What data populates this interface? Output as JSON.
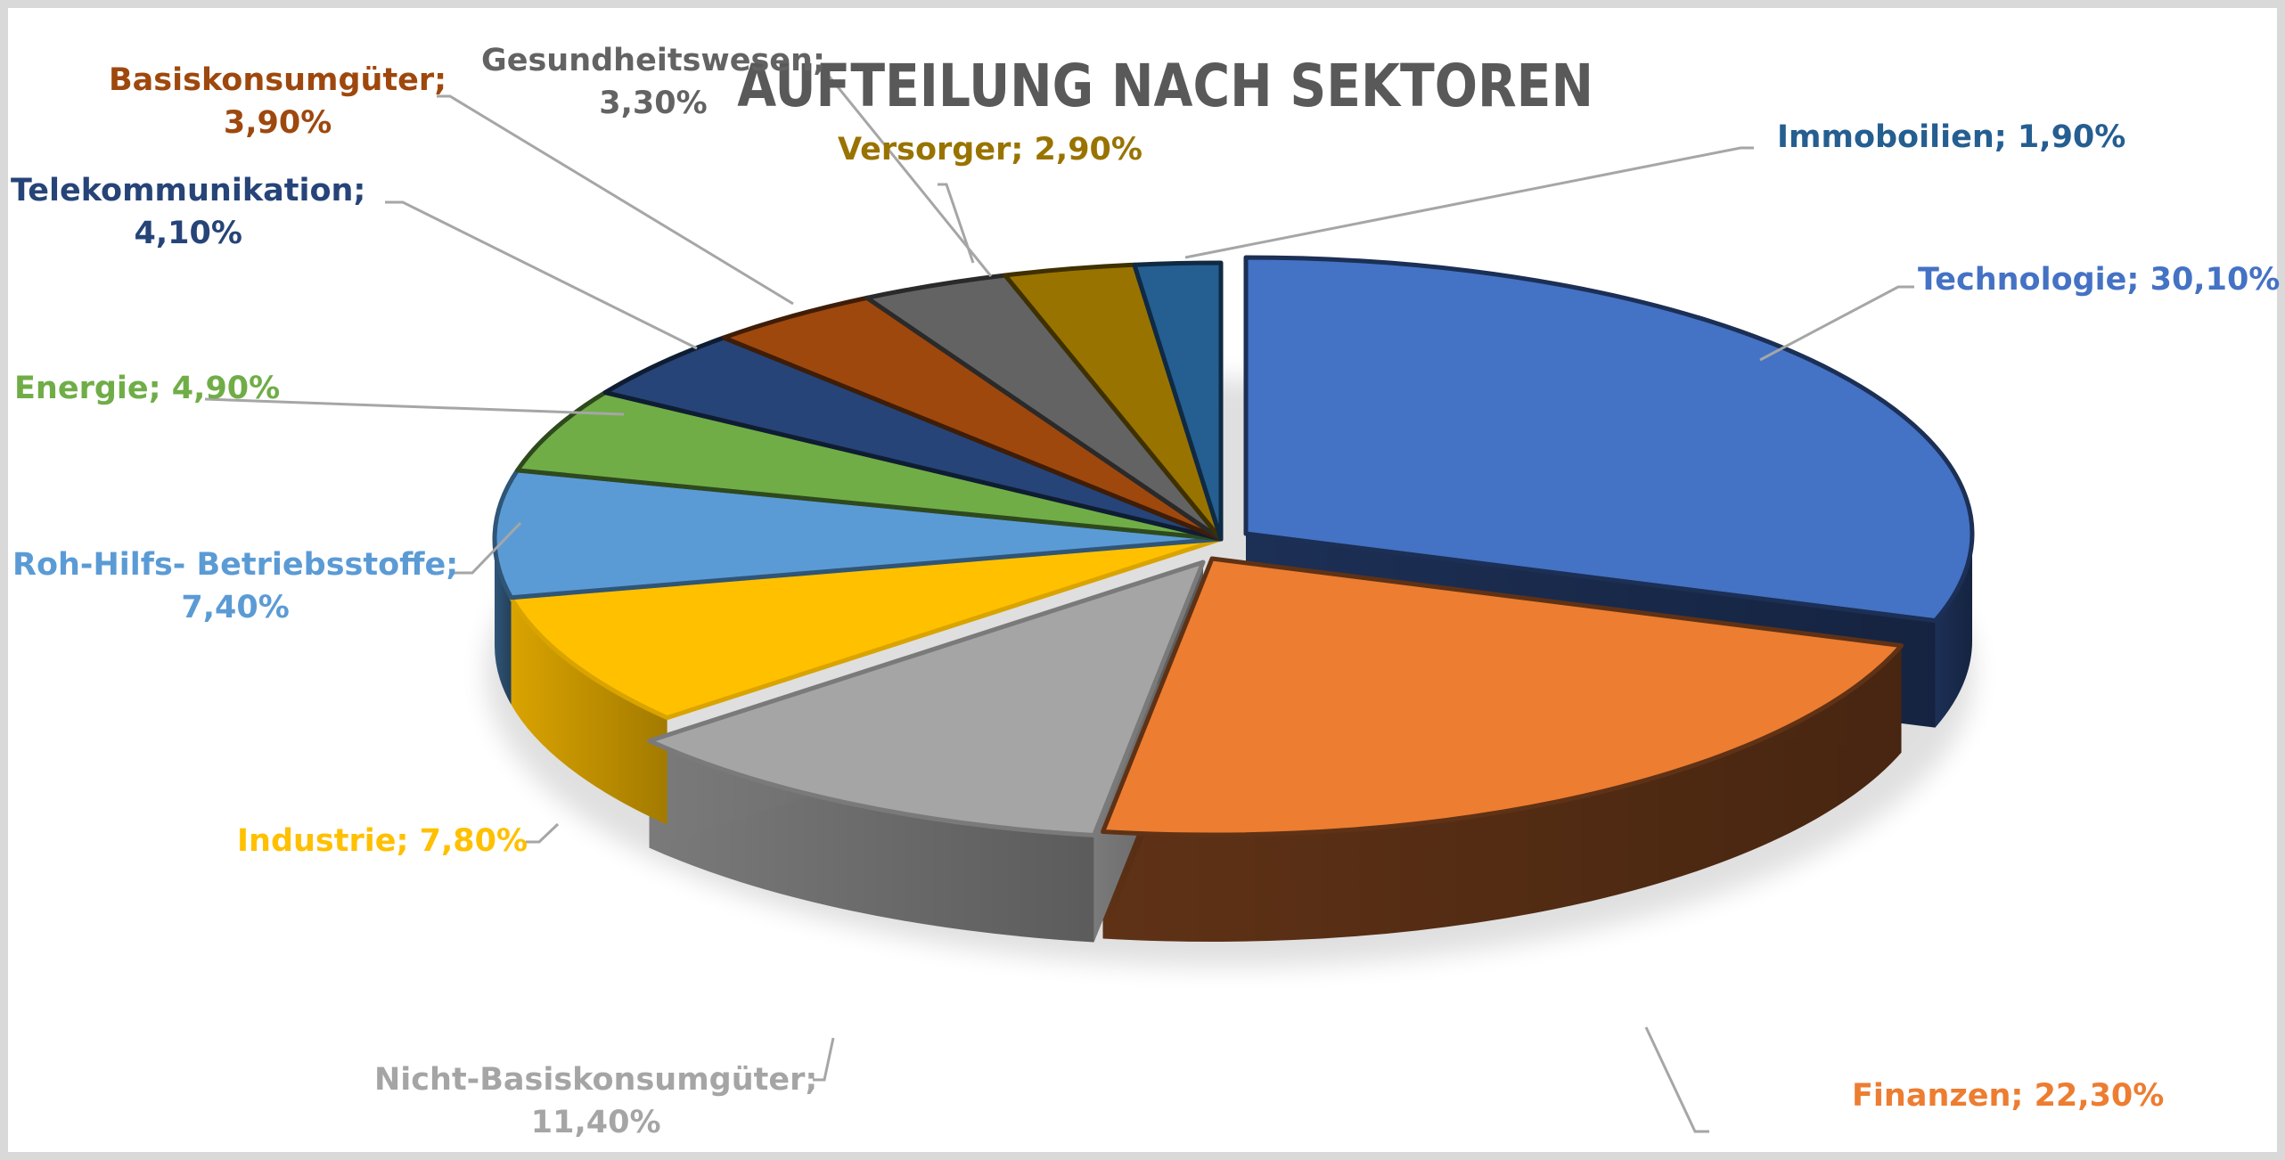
{
  "chart_data": {
    "type": "pie",
    "variant": "3d-exploded",
    "title": "AUFTEILUNG NACH SEKTOREN",
    "unit": "%",
    "legend": "none (data labels with leader lines)",
    "slices": [
      {
        "name": "Technologie",
        "value": 30.1,
        "label": "Technologie; 30,10%",
        "color": "#4472c4",
        "side": "#1c2f55"
      },
      {
        "name": "Finanzen",
        "value": 22.3,
        "label": "Finanzen; 22,30%",
        "color": "#ed7d31",
        "side": "#5f3216"
      },
      {
        "name": "Nicht-Basiskonsumgüter",
        "value": 11.4,
        "label": "Nicht-Basiskonsumgüter; 11,40%",
        "color": "#a5a5a5",
        "side": "#7a7a7a"
      },
      {
        "name": "Industrie",
        "value": 7.8,
        "label": "Industrie; 7,80%",
        "color": "#ffc000",
        "side": "#d9a300"
      },
      {
        "name": "Roh-Hilfs- Betriebsstoffe",
        "value": 7.4,
        "label": "Roh-Hilfs- Betriebsstoffe; 7,40%",
        "color": "#5b9bd5",
        "side": "#2f5577"
      },
      {
        "name": "Energie",
        "value": 4.9,
        "label": "Energie; 4,90%",
        "color": "#70ad47",
        "side": "#2e4a1d"
      },
      {
        "name": "Telekommunikation",
        "value": 4.1,
        "label": "Telekommunikation; 4,10%",
        "color": "#264478",
        "side": "#0f1d33"
      },
      {
        "name": "Basiskonsumgüter",
        "value": 3.9,
        "label": "Basiskonsumgüter; 3,90%",
        "color": "#9e480e",
        "side": "#3f1d06"
      },
      {
        "name": "Gesundheitswesen",
        "value": 3.3,
        "label": "Gesundheitswesen; 3,30%",
        "color": "#636363",
        "side": "#2a2a2a"
      },
      {
        "name": "Versorger",
        "value": 2.9,
        "label": "Versorger; 2,90%",
        "color": "#997300",
        "side": "#3f3000"
      },
      {
        "name": "Immoboilien",
        "value": 1.9,
        "label": "Immoboilien; 1,90%",
        "color": "#255e91",
        "side": "#0f2a42"
      }
    ]
  },
  "title": "AUFTEILUNG NACH SEKTOREN",
  "labels": {
    "technologie": {
      "line1": "Technologie; 30,10%",
      "color": "#4472c4"
    },
    "finanzen": {
      "line1": "Finanzen; 22,30%",
      "color": "#ed7d31"
    },
    "nicht_basis": {
      "line1": "Nicht-Basiskonsumgüter;",
      "line2": "11,40%",
      "color": "#a5a5a5"
    },
    "industrie": {
      "line1": "Industrie; 7,80%",
      "color": "#ffc000"
    },
    "roh": {
      "line1": "Roh-Hilfs- Betriebsstoffe;",
      "line2": "7,40%",
      "color": "#5b9bd5"
    },
    "energie": {
      "line1": "Energie; 4,90%",
      "color": "#70ad47"
    },
    "telekom": {
      "line1": "Telekommunikation;",
      "line2": "4,10%",
      "color": "#264478"
    },
    "basis": {
      "line1": "Basiskonsumgüter;",
      "line2": "3,90%",
      "color": "#9e480e"
    },
    "gesundheit": {
      "line1": "Gesundheitswesen;",
      "line2": "3,30%",
      "color": "#636363"
    },
    "versorger": {
      "line1": "Versorger; 2,90%",
      "color": "#997300"
    },
    "immobilien": {
      "line1": "Immoboilien; 1,90%",
      "color": "#255e91"
    }
  }
}
